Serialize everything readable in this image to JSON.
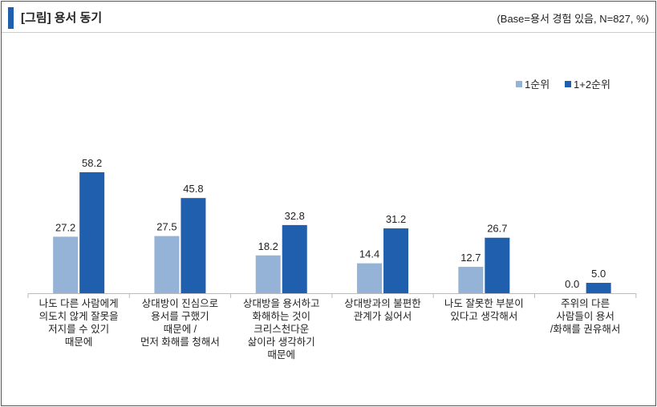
{
  "header": {
    "title": "[그림] 용서 동기",
    "base_note": "(Base=용서 경험 있음, N=827, %)"
  },
  "colors": {
    "series1": "#95b3d7",
    "series2": "#1f5fae",
    "accent": "#1f5fae"
  },
  "chart_data": {
    "type": "bar",
    "categories": [
      "나도 다른 사람에게\n의도치 않게 잘못을\n저지를 수 있기\n때문에",
      "상대방이 진심으로\n용서를 구했기\n때문에 /\n먼저 화해를 청해서",
      "상대방을 용서하고\n화해하는 것이\n크리스천다운\n삶이라 생각하기\n때문에",
      "상대방과의 불편한\n관계가 싫어서",
      "나도 잘못한 부분이\n있다고 생각해서",
      "주위의 다른\n사람들이 용서\n/화해를 권유해서"
    ],
    "series": [
      {
        "name": "1순위",
        "values": [
          27.2,
          27.5,
          18.2,
          14.4,
          12.7,
          0.0
        ]
      },
      {
        "name": "1+2순위",
        "values": [
          58.2,
          45.8,
          32.8,
          31.2,
          26.7,
          5.0
        ]
      }
    ],
    "ylim": [
      0,
      60
    ],
    "grid": false,
    "legend": "top-right",
    "data_labels": true
  }
}
